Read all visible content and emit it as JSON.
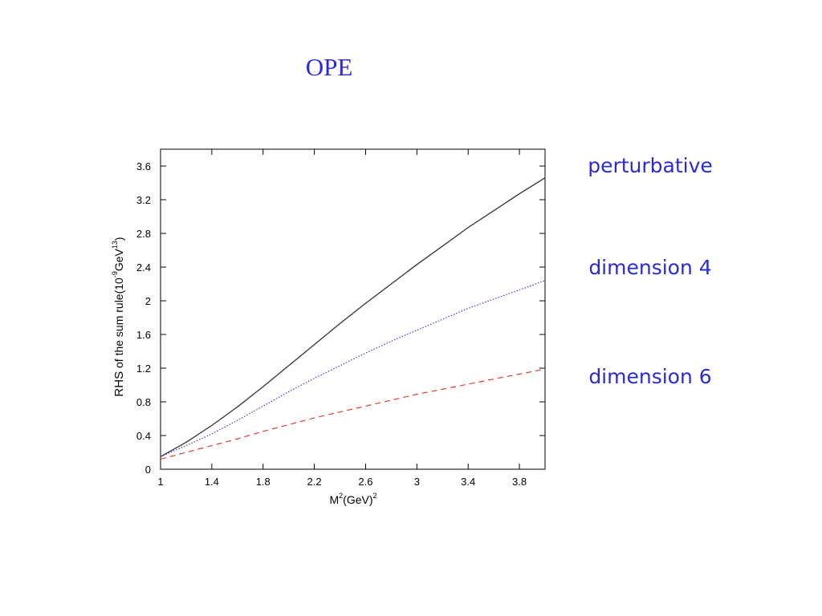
{
  "slide": {
    "title": "OPE"
  },
  "annotations": {
    "perturbative": "perturbative",
    "dimension4": "dimension 4",
    "dimension6": "dimension 6"
  },
  "chart_data": {
    "type": "line",
    "xlabel_main": "M",
    "xlabel_sup": "2",
    "xlabel_rest": "(GeV)",
    "xlabel_sup2": "2",
    "ylabel_a": "RHS",
    "ylabel_b": " of the sum rule(10",
    "ylabel_sup1": "-9",
    "ylabel_c": "GeV",
    "ylabel_sup2": "13",
    "ylabel_d": ")",
    "xlim": [
      1,
      4
    ],
    "ylim": [
      0,
      3.8
    ],
    "xticks": [
      1,
      1.4,
      1.8,
      2.2,
      2.6,
      3,
      3.4,
      3.8
    ],
    "xtick_labels": [
      "1",
      "1.4",
      "1.8",
      "2.2",
      "2.6",
      "3",
      "3.4",
      "3.8"
    ],
    "yticks": [
      0,
      0.4,
      0.8,
      1.2,
      1.6,
      2,
      2.4,
      2.8,
      3.2,
      3.6
    ],
    "ytick_labels": [
      "0",
      "0.4",
      "0.8",
      "1.2",
      "1.6",
      "2",
      "2.4",
      "2.8",
      "3.2",
      "3.6"
    ],
    "grid": false,
    "series": [
      {
        "style": "solid",
        "color": "#333333",
        "x": [
          1.0,
          1.2,
          1.4,
          1.6,
          1.8,
          2.0,
          2.2,
          2.4,
          2.6,
          2.8,
          3.0,
          3.2,
          3.4,
          3.6,
          3.8,
          4.0
        ],
        "y": [
          0.15,
          0.32,
          0.52,
          0.74,
          0.98,
          1.23,
          1.48,
          1.73,
          1.97,
          2.2,
          2.43,
          2.65,
          2.87,
          3.07,
          3.27,
          3.46
        ]
      },
      {
        "style": "dotted",
        "color": "#2b2bd0",
        "x": [
          1.0,
          1.2,
          1.4,
          1.6,
          1.8,
          2.0,
          2.2,
          2.4,
          2.6,
          2.8,
          3.0,
          3.2,
          3.4,
          3.6,
          3.8,
          4.0
        ],
        "y": [
          0.15,
          0.28,
          0.42,
          0.58,
          0.75,
          0.92,
          1.08,
          1.23,
          1.38,
          1.52,
          1.65,
          1.78,
          1.91,
          2.02,
          2.13,
          2.24
        ]
      },
      {
        "style": "dashed",
        "color": "#e03020",
        "x": [
          1.0,
          1.2,
          1.4,
          1.6,
          1.8,
          2.0,
          2.2,
          2.4,
          2.6,
          2.8,
          3.0,
          3.2,
          3.4,
          3.6,
          3.8,
          4.0
        ],
        "y": [
          0.12,
          0.2,
          0.28,
          0.36,
          0.45,
          0.53,
          0.61,
          0.68,
          0.75,
          0.82,
          0.89,
          0.95,
          1.01,
          1.07,
          1.13,
          1.19
        ]
      }
    ]
  }
}
